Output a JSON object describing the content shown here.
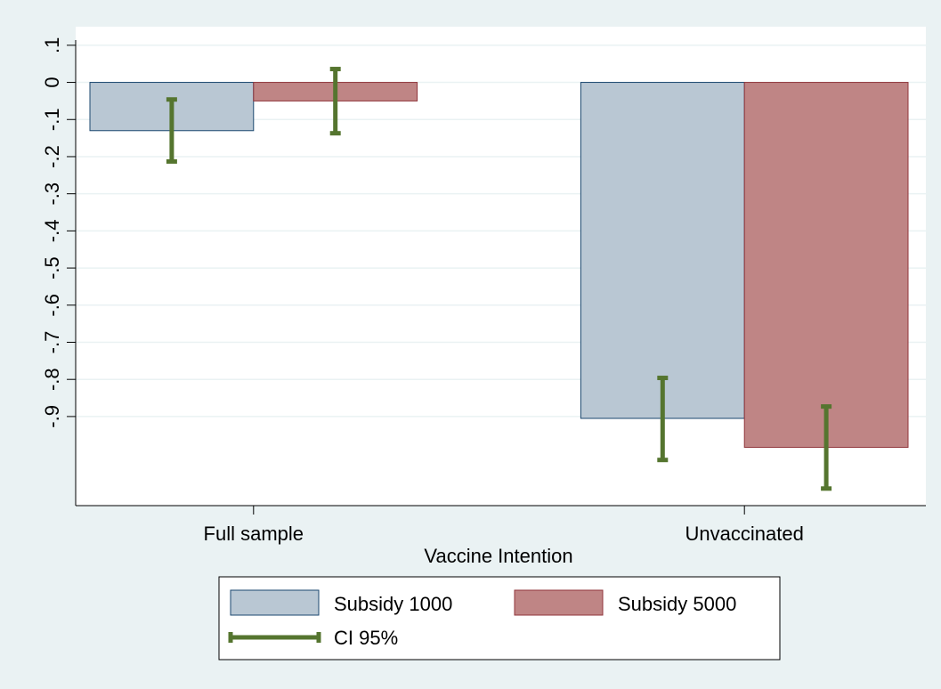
{
  "chart_data": {
    "type": "bar",
    "x_label": "Vaccine Intention",
    "categories": [
      "Full sample",
      "Unvaccinated"
    ],
    "series": [
      {
        "name": "Subsidy 1000",
        "color": "#b9c7d3",
        "edge": "#1a476f",
        "values": [
          -0.13,
          -0.905
        ],
        "ci_low": [
          -0.213,
          -1.017
        ],
        "ci_high": [
          -0.046,
          -0.796
        ]
      },
      {
        "name": "Subsidy 5000",
        "color": "#bf8585",
        "edge": "#90353b",
        "values": [
          -0.05,
          -0.983
        ],
        "ci_low": [
          -0.137,
          -1.094
        ],
        "ci_high": [
          0.036,
          -0.873
        ]
      }
    ],
    "ci": {
      "name": "CI 95%",
      "color": "#55752f"
    },
    "ylim": [
      -1.14,
      0.15
    ],
    "yticks": [
      {
        "value": 0.1,
        "label": ".1"
      },
      0,
      {
        "value": -0.1,
        "label": "-.1"
      },
      {
        "value": -0.2,
        "label": "-.2"
      },
      {
        "value": -0.3,
        "label": "-.3"
      },
      {
        "value": -0.4,
        "label": "-.4"
      },
      {
        "value": -0.5,
        "label": "-.5"
      },
      {
        "value": -0.6,
        "label": "-.6"
      },
      {
        "value": -0.7,
        "label": "-.7"
      },
      {
        "value": -0.8,
        "label": "-.8"
      },
      {
        "value": -0.9,
        "label": "-.9"
      }
    ],
    "grid": true,
    "legend": "bottom"
  }
}
